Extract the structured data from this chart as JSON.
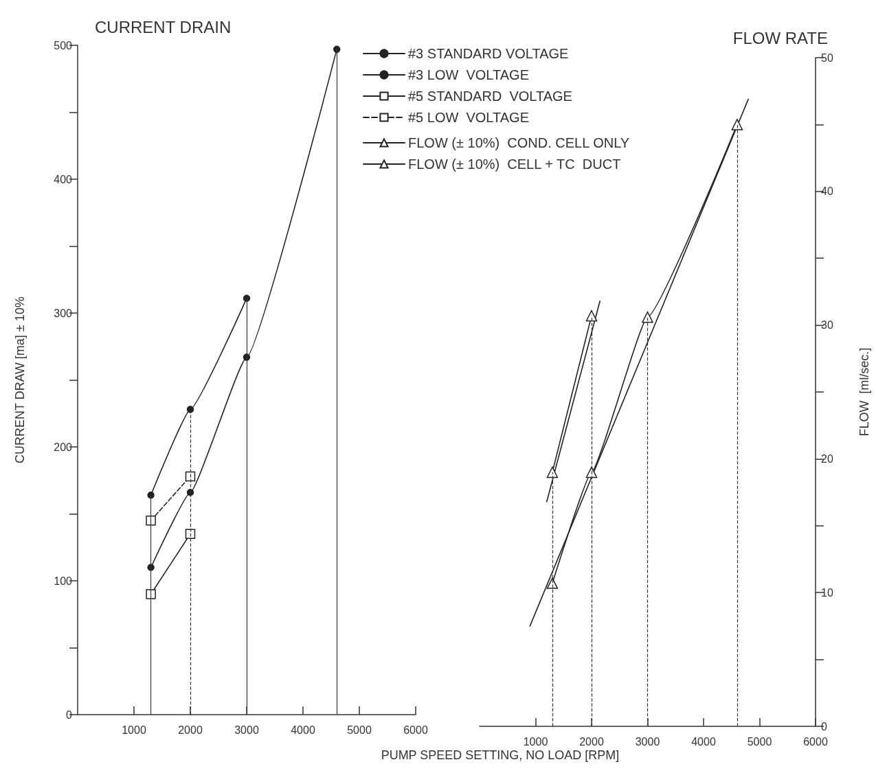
{
  "chart_data": [
    {
      "type": "line",
      "title": "CURRENT DRAIN",
      "xlabel": "PUMP SPEED SETTING, NO LOAD [RPM]",
      "ylabel": "CURRENT DRAW [ma] ± 10%",
      "xlim": [
        0,
        6000
      ],
      "xticks": [
        1000,
        2000,
        3000,
        4000,
        5000,
        6000
      ],
      "ylim": [
        0,
        500
      ],
      "yticks": [
        0,
        {
          "value": 50,
          "label": null
        },
        100,
        {
          "value": 150,
          "label": null
        },
        200,
        {
          "value": 250,
          "label": null
        },
        300,
        {
          "value": 350,
          "label": null
        },
        400,
        {
          "value": 450,
          "label": null
        },
        500
      ],
      "grid": false,
      "legend": "top right",
      "series": [
        {
          "name": "#3 STANDARD VOLTAGE",
          "color": "#222222",
          "marker": "circle",
          "line_style": "solid",
          "x": [
            1300,
            2000,
            3000,
            4600
          ],
          "values": [
            110,
            166,
            267,
            497
          ]
        },
        {
          "name": "#3 LOW  VOLTAGE",
          "color": "#222222",
          "marker": "circle",
          "line_style": "solid",
          "x": [
            1300,
            2000,
            3000
          ],
          "values": [
            164,
            228,
            311
          ]
        },
        {
          "name": "#5 STANDARD  VOLTAGE",
          "color": "#222222",
          "marker": "square",
          "line_style": "solid",
          "x": [
            1300,
            2000
          ],
          "values": [
            90,
            135
          ]
        },
        {
          "name": "#5 LOW  VOLTAGE",
          "color": "#222222",
          "marker": "square",
          "line_style": "dashed",
          "x": [
            1300,
            2000
          ],
          "values": [
            145,
            178
          ]
        }
      ],
      "ref_lines": [
        {
          "axis": "x",
          "value": 1300,
          "line_style": "solid"
        },
        {
          "axis": "x",
          "value": 2000,
          "line_style": "dashed"
        },
        {
          "axis": "x",
          "value": 3000,
          "line_style": "solid"
        },
        {
          "axis": "x",
          "value": 4600,
          "line_style": "solid"
        }
      ]
    },
    {
      "type": "line",
      "title": "FLOW RATE",
      "ylabel": "FLOW  [ml/sec.]",
      "xlim": [
        0,
        6000
      ],
      "xticks": [
        1000,
        2000,
        3000,
        4000,
        5000,
        6000
      ],
      "ylim": [
        0,
        50
      ],
      "yticks": [
        0,
        {
          "value": 5,
          "label": null
        },
        10,
        {
          "value": 15,
          "label": null
        },
        20,
        {
          "value": 25,
          "label": null
        },
        30,
        {
          "value": 35,
          "label": null
        },
        40,
        {
          "value": 45,
          "label": null
        },
        50
      ],
      "grid": false,
      "legend": "top left",
      "series": [
        {
          "name": "FLOW (± 10%)  COND. CELL ONLY",
          "color": "#222222",
          "marker": "triangle",
          "line_style": "solid",
          "x": [
            1300,
            2000
          ],
          "values": [
            19.0,
            30.7
          ]
        },
        {
          "name": "FLOW (± 10%)  CELL + TC  DUCT",
          "color": "#222222",
          "marker": "triangle",
          "line_style": "solid",
          "x": [
            1300,
            2000,
            3000,
            4600
          ],
          "values": [
            10.7,
            19.0,
            30.6,
            45.0
          ]
        },
        {
          "color": "#222222",
          "marker": "none",
          "line_style": "solid",
          "x": [
            1200,
            2150
          ],
          "values": [
            16.8,
            31.8
          ]
        },
        {
          "color": "#222222",
          "marker": "none",
          "line_style": "solid",
          "x": [
            900,
            4800
          ],
          "values": [
            7.5,
            46.9
          ]
        }
      ],
      "ref_lines": [
        {
          "axis": "x",
          "value": 1300,
          "line_style": "dashed"
        },
        {
          "axis": "x",
          "value": 2000,
          "line_style": "dashed"
        },
        {
          "axis": "x",
          "value": 3000,
          "line_style": "dashed"
        },
        {
          "axis": "x",
          "value": 4600,
          "line_style": "dashed"
        }
      ]
    }
  ]
}
